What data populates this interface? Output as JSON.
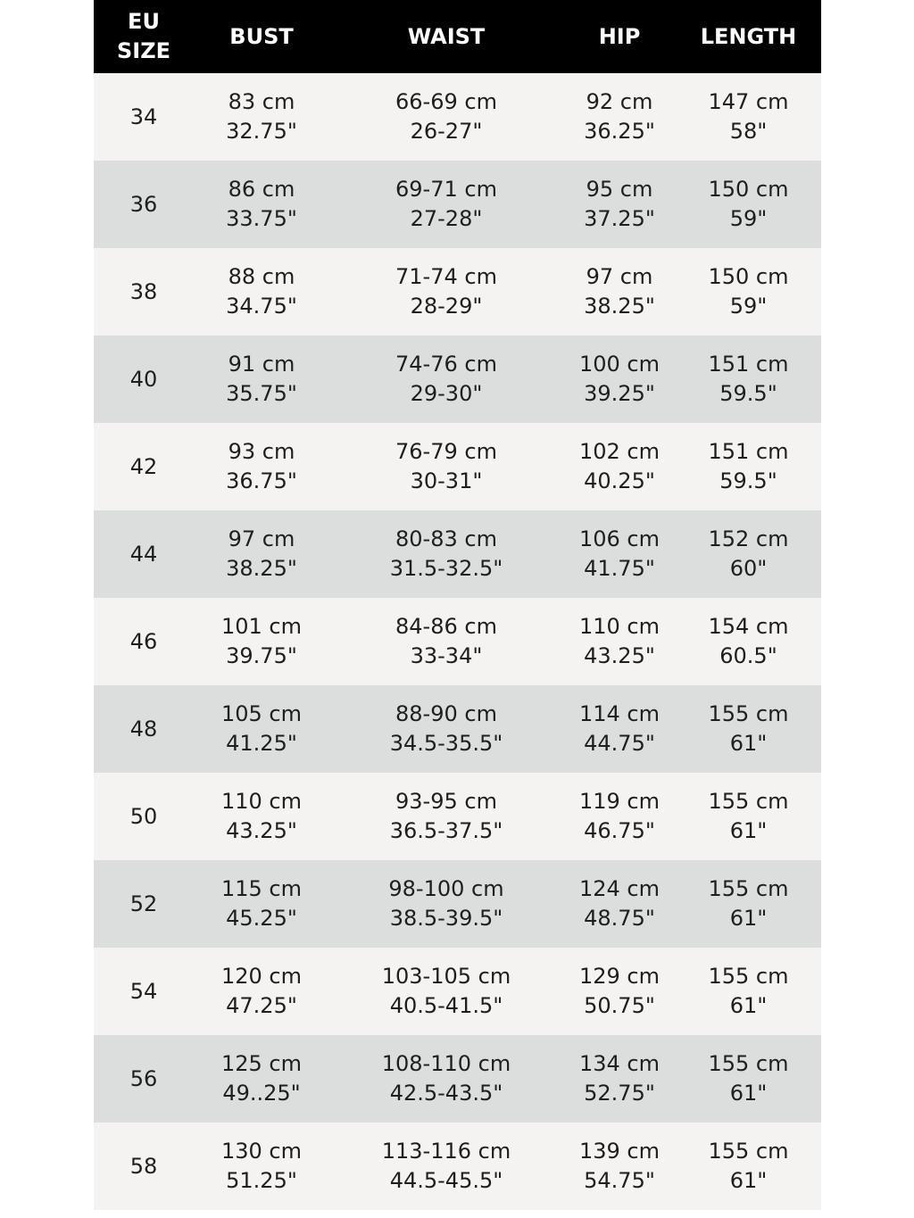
{
  "header": {
    "size_line1": "EU",
    "size_line2": "SIZE",
    "bust": "BUST",
    "waist": "WAIST",
    "hip": "HIP",
    "length": "LENGTH"
  },
  "colors": {
    "header_bg": "#000000",
    "row_light": "#f4f3f2",
    "row_dark": "#dcdedd",
    "text": "#1e1e1e"
  },
  "rows": [
    {
      "size": "34",
      "bust_cm": "83 cm",
      "bust_in": "32.75\"",
      "waist_cm": "66-69 cm",
      "waist_in": "26-27\"",
      "hip_cm": "92 cm",
      "hip_in": "36.25\"",
      "length_cm": "147 cm",
      "length_in": "58\""
    },
    {
      "size": "36",
      "bust_cm": "86 cm",
      "bust_in": "33.75\"",
      "waist_cm": "69-71 cm",
      "waist_in": "27-28\"",
      "hip_cm": "95 cm",
      "hip_in": "37.25\"",
      "length_cm": "150 cm",
      "length_in": "59\""
    },
    {
      "size": "38",
      "bust_cm": "88 cm",
      "bust_in": "34.75\"",
      "waist_cm": "71-74 cm",
      "waist_in": "28-29\"",
      "hip_cm": "97 cm",
      "hip_in": "38.25\"",
      "length_cm": "150 cm",
      "length_in": "59\""
    },
    {
      "size": "40",
      "bust_cm": "91 cm",
      "bust_in": "35.75\"",
      "waist_cm": "74-76 cm",
      "waist_in": "29-30\"",
      "hip_cm": "100 cm",
      "hip_in": "39.25\"",
      "length_cm": "151 cm",
      "length_in": "59.5\""
    },
    {
      "size": "42",
      "bust_cm": "93 cm",
      "bust_in": "36.75\"",
      "waist_cm": "76-79 cm",
      "waist_in": "30-31\"",
      "hip_cm": "102 cm",
      "hip_in": "40.25\"",
      "length_cm": "151 cm",
      "length_in": "59.5\""
    },
    {
      "size": "44",
      "bust_cm": "97 cm",
      "bust_in": "38.25\"",
      "waist_cm": "80-83 cm",
      "waist_in": "31.5-32.5\"",
      "hip_cm": "106 cm",
      "hip_in": "41.75\"",
      "length_cm": "152 cm",
      "length_in": "60\""
    },
    {
      "size": "46",
      "bust_cm": "101 cm",
      "bust_in": "39.75\"",
      "waist_cm": "84-86 cm",
      "waist_in": "33-34\"",
      "hip_cm": "110 cm",
      "hip_in": "43.25\"",
      "length_cm": "154 cm",
      "length_in": "60.5\""
    },
    {
      "size": "48",
      "bust_cm": "105 cm",
      "bust_in": "41.25\"",
      "waist_cm": "88-90 cm",
      "waist_in": "34.5-35.5\"",
      "hip_cm": "114 cm",
      "hip_in": "44.75\"",
      "length_cm": "155 cm",
      "length_in": "61\""
    },
    {
      "size": "50",
      "bust_cm": "110 cm",
      "bust_in": "43.25\"",
      "waist_cm": "93-95 cm",
      "waist_in": "36.5-37.5\"",
      "hip_cm": "119 cm",
      "hip_in": "46.75\"",
      "length_cm": "155 cm",
      "length_in": "61\""
    },
    {
      "size": "52",
      "bust_cm": "115 cm",
      "bust_in": "45.25\"",
      "waist_cm": "98-100 cm",
      "waist_in": "38.5-39.5\"",
      "hip_cm": "124 cm",
      "hip_in": "48.75\"",
      "length_cm": "155 cm",
      "length_in": "61\""
    },
    {
      "size": "54",
      "bust_cm": "120 cm",
      "bust_in": "47.25\"",
      "waist_cm": "103-105 cm",
      "waist_in": "40.5-41.5\"",
      "hip_cm": "129 cm",
      "hip_in": "50.75\"",
      "length_cm": "155 cm",
      "length_in": "61\""
    },
    {
      "size": "56",
      "bust_cm": "125 cm",
      "bust_in": "49..25\"",
      "waist_cm": "108-110 cm",
      "waist_in": "42.5-43.5\"",
      "hip_cm": "134 cm",
      "hip_in": "52.75\"",
      "length_cm": "155 cm",
      "length_in": "61\""
    },
    {
      "size": "58",
      "bust_cm": "130 cm",
      "bust_in": "51.25\"",
      "waist_cm": "113-116 cm",
      "waist_in": "44.5-45.5\"",
      "hip_cm": "139 cm",
      "hip_in": "54.75\"",
      "length_cm": "155 cm",
      "length_in": "61\""
    }
  ]
}
